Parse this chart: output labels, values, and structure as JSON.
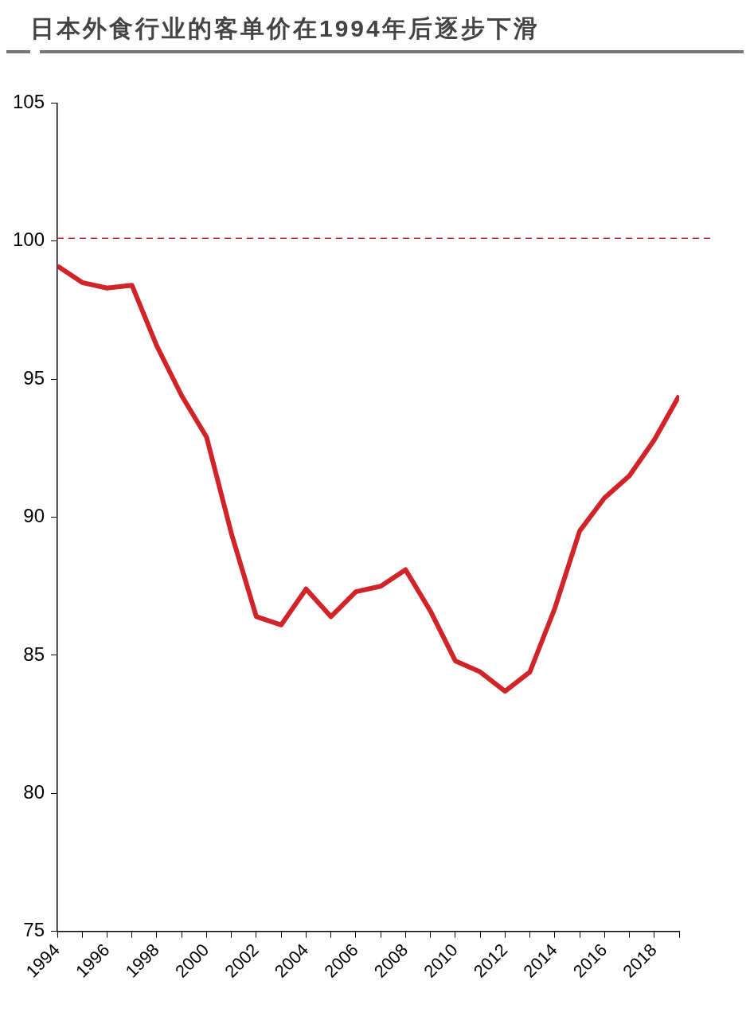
{
  "chart_data": {
    "type": "line",
    "title": "日本外食行业的客单价在1994年后逐步下滑",
    "x": [
      1994,
      1995,
      1996,
      1997,
      1998,
      1999,
      2000,
      2001,
      2002,
      2003,
      2004,
      2005,
      2006,
      2007,
      2008,
      2009,
      2010,
      2011,
      2012,
      2013,
      2014,
      2015,
      2016,
      2017,
      2018,
      2019
    ],
    "series": [
      {
        "color": "#d02428",
        "values": [
          99.1,
          98.5,
          98.3,
          98.4,
          96.2,
          94.4,
          92.9,
          89.4,
          86.4,
          86.1,
          87.4,
          86.4,
          87.3,
          87.5,
          88.1,
          86.6,
          84.8,
          84.4,
          83.7,
          84.4,
          86.7,
          89.5,
          90.7,
          91.5,
          92.8,
          94.4
        ]
      }
    ],
    "xlim": [
      1994,
      2019
    ],
    "xticks": [
      1994,
      {
        "value": 1995,
        "label": null
      },
      1996,
      {
        "value": 1997,
        "label": null
      },
      1998,
      {
        "value": 1999,
        "label": null
      },
      2000,
      {
        "value": 2001,
        "label": null
      },
      2002,
      {
        "value": 2003,
        "label": null
      },
      2004,
      {
        "value": 2005,
        "label": null
      },
      2006,
      {
        "value": 2007,
        "label": null
      },
      2008,
      {
        "value": 2009,
        "label": null
      },
      2010,
      {
        "value": 2011,
        "label": null
      },
      2012,
      {
        "value": 2013,
        "label": null
      },
      2014,
      {
        "value": 2015,
        "label": null
      },
      2016,
      {
        "value": 2017,
        "label": null
      },
      2018,
      {
        "value": 2019,
        "label": null
      }
    ],
    "ylim": [
      75,
      105
    ],
    "yticks": [
      75,
      80,
      85,
      90,
      95,
      100,
      105
    ],
    "ref_lines": [
      {
        "axis": "y",
        "value": 100.1,
        "color": "#c0282c",
        "line_style": "dashed"
      }
    ],
    "grid": false,
    "legend": false,
    "marker": "none",
    "line_style": "solid"
  }
}
